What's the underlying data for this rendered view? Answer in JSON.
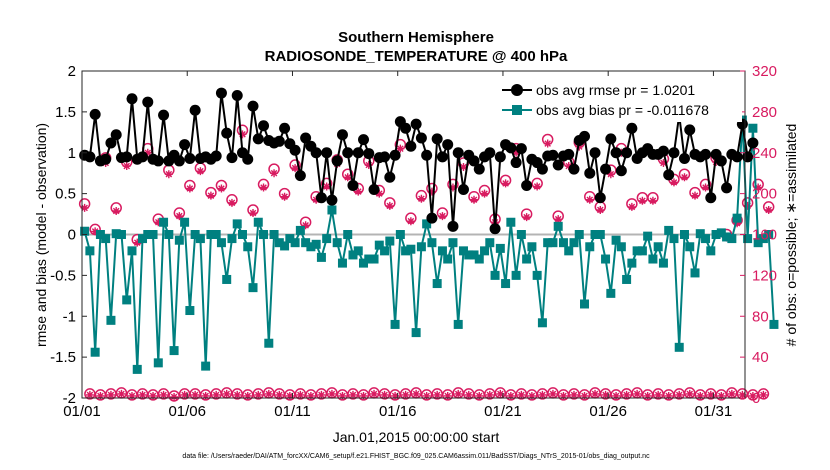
{
  "chart_data": {
    "type": "line",
    "title": "Southern Hemisphere",
    "subtitle": "RADIOSONDE_TEMPERATURE @ 400 hPa",
    "xlabel": "Jan.01,2015 00:00:00 start",
    "ylabel": "rmse and bias (model - observation)",
    "ylabel_right": "# of obs: o=possible; ∗=assimilated",
    "xlim": [
      0,
      31.5
    ],
    "ylim": [
      -2,
      2
    ],
    "ylim_right": [
      0,
      320
    ],
    "x_ticks": [
      0,
      5,
      10,
      15,
      20,
      25,
      30
    ],
    "x_tick_labels": [
      "01/01",
      "01/06",
      "01/11",
      "01/16",
      "01/21",
      "01/26",
      "01/31"
    ],
    "y_ticks": [
      -2,
      -1.5,
      -1,
      -0.5,
      0,
      0.5,
      1,
      1.5,
      2
    ],
    "y_tick_labels": [
      "-2",
      "-1.5",
      "-1",
      "-0.5",
      "0",
      "0.5",
      "1",
      "1.5",
      "2"
    ],
    "y_ticks_right": [
      0,
      40,
      80,
      120,
      160,
      200,
      240,
      280,
      320
    ],
    "y_tick_labels_right": [
      "0",
      "40",
      "80",
      "120",
      "160",
      "200",
      "240",
      "280",
      "320"
    ],
    "footer": "data file: /Users/raeder/DAI/ATM_forcXX/CAM6_setup/f.e21.FHIST_BGC.f09_025.CAM6assim.011/BadSST/Diags_NTrS_2015-01/obs_diag_output.nc",
    "colors": {
      "rmse": "#000000",
      "bias": "#008080",
      "obs": "#d81b60",
      "zero": "#b4b4b4"
    },
    "series": [
      {
        "name": "obs avg rmse pr = 1.0201",
        "values": [
          0.97,
          0.95,
          1.47,
          0.9,
          0.92,
          1.12,
          1.22,
          0.94,
          0.95,
          1.66,
          0.92,
          0.95,
          1.62,
          0.92,
          0.9,
          1.46,
          0.9,
          0.97,
          0.9,
          1.1,
          0.93,
          1.52,
          0.93,
          0.95,
          0.92,
          0.96,
          1.73,
          1.24,
          0.94,
          1.7,
          1.0,
          0.92,
          1.57,
          1.17,
          1.33,
          1.15,
          1.12,
          1.14,
          1.3,
          1.11,
          1.03,
          0.72,
          1.18,
          1.08,
          1.0,
          0.45,
          1.0,
          0.42,
          0.9,
          1.22,
          1.0,
          0.6,
          1.0,
          1.16,
          0.99,
          0.55,
          0.94,
          0.95,
          0.7,
          0.97,
          1.38,
          1.3,
          1.08,
          1.35,
          1.18,
          0.97,
          0.2,
          1.17,
          0.95,
          1.1,
          0.1,
          1.0,
          0.55,
          0.97,
          0.9,
          0.8,
          0.95,
          1.0,
          0.07,
          0.95,
          1.1,
          1.06,
          0.88,
          1.05,
          0.6,
          0.92,
          0.88,
          0.8,
          0.96,
          0.97,
          0.85,
          0.96,
          0.98,
          0.8,
          1.15,
          1.2,
          0.75,
          1.0,
          0.45,
          0.8,
          1.17,
          1.0,
          0.78,
          1.0,
          1.3,
          0.93,
          1.0,
          1.05,
          0.98,
          0.98,
          1.02,
          0.73,
          1.0,
          1.46,
          0.93,
          1.28,
          0.98,
          0.95,
          0.98,
          0.45,
          0.98,
          0.9,
          0.57,
          0.98,
          0.95,
          1.35,
          0.95,
          1.12
        ]
      },
      {
        "name": "obs avg bias pr = -0.011678",
        "values": [
          0.04,
          -0.2,
          -1.44,
          0.0,
          -0.05,
          -1.05,
          0.01,
          0.0,
          -0.8,
          -0.2,
          -1.65,
          -0.05,
          0.0,
          0.0,
          -1.57,
          0.15,
          0.0,
          -1.42,
          -0.07,
          0.15,
          -0.93,
          0.0,
          -0.05,
          -1.61,
          0.0,
          0.0,
          -0.1,
          -0.55,
          -0.05,
          0.13,
          0.0,
          -0.15,
          -0.65,
          0.15,
          0.0,
          -1.33,
          0.0,
          -0.1,
          -0.14,
          -0.05,
          -0.1,
          0.05,
          -0.1,
          -0.15,
          -0.12,
          -0.28,
          -0.05,
          0.3,
          -0.1,
          -0.35,
          0.0,
          -0.25,
          -0.2,
          -0.35,
          -0.3,
          -0.3,
          -0.13,
          -0.2,
          -0.08,
          -1.1,
          0.0,
          -0.2,
          -0.18,
          -1.2,
          -0.15,
          0.13,
          -0.1,
          -0.6,
          -0.2,
          -0.3,
          -0.1,
          -1.1,
          -0.2,
          -0.25,
          -0.25,
          -0.3,
          -0.2,
          -0.1,
          -0.5,
          -0.17,
          -0.6,
          0.15,
          -0.5,
          0.0,
          -0.3,
          -0.15,
          -0.5,
          -1.08,
          -0.1,
          -0.1,
          0.1,
          -0.1,
          -0.2,
          -0.1,
          0.0,
          -0.85,
          -0.15,
          0.0,
          0.0,
          -0.3,
          -0.72,
          -0.07,
          -0.15,
          -0.55,
          -0.35,
          -0.2,
          -0.2,
          -0.02,
          -0.3,
          -0.15,
          -0.35,
          0.05,
          -0.05,
          -1.38,
          0.0,
          -0.15,
          -0.47,
          0.01,
          -0.05,
          -0.2,
          0.0,
          0.02,
          -0.03,
          -0.05,
          0.2,
          1.4,
          -0.05,
          1.3,
          -0.1,
          -0.05,
          0.0,
          -1.1
        ]
      },
      {
        "name": "possible",
        "axis": "right",
        "marker": "o",
        "values": [
          190,
          4,
          165,
          3,
          235,
          4,
          186,
          5,
          231,
          3,
          155,
          4,
          244,
          3,
          175,
          4,
          223,
          2,
          181,
          4,
          208,
          4,
          225,
          3,
          201,
          4,
          208,
          5,
          194,
          4,
          262,
          3,
          184,
          4,
          209,
          5,
          224,
          4,
          200,
          3,
          228,
          4,
          172,
          3,
          197,
          4,
          210,
          5,
          233,
          3,
          219,
          4,
          205,
          3,
          232,
          5,
          203,
          4,
          191,
          3,
          248,
          4,
          176,
          5,
          198,
          3,
          205,
          4,
          181,
          3,
          209,
          5,
          230,
          4,
          197,
          3,
          203,
          4,
          175,
          5,
          213,
          3,
          244,
          4,
          180,
          3,
          210,
          4,
          253,
          5,
          178,
          3,
          231,
          4,
          250,
          3,
          197,
          5,
          187,
          4,
          223,
          3,
          244,
          4,
          190,
          5,
          196,
          3,
          196,
          4,
          234,
          3,
          214,
          4,
          219,
          5,
          201,
          3,
          209,
          4,
          235,
          3,
          160,
          5,
          174,
          4,
          191,
          3,
          209,
          4,
          187
        ]
      },
      {
        "name": "assimilated",
        "axis": "right",
        "marker": "*",
        "values": [
          186,
          3,
          163,
          2,
          230,
          3,
          183,
          4,
          227,
          2,
          152,
          3,
          240,
          2,
          172,
          3,
          219,
          1,
          178,
          3,
          205,
          3,
          222,
          2,
          198,
          3,
          205,
          4,
          191,
          3,
          258,
          2,
          181,
          3,
          206,
          4,
          220,
          3,
          197,
          2,
          225,
          3,
          169,
          2,
          194,
          3,
          207,
          4,
          229,
          2,
          216,
          3,
          202,
          2,
          228,
          4,
          200,
          3,
          188,
          2,
          244,
          3,
          173,
          4,
          195,
          2,
          202,
          3,
          178,
          2,
          206,
          4,
          226,
          3,
          194,
          2,
          200,
          3,
          172,
          4,
          210,
          2,
          240,
          3,
          177,
          2,
          207,
          3,
          249,
          4,
          175,
          2,
          227,
          3,
          246,
          2,
          194,
          4,
          184,
          3,
          219,
          2,
          240,
          3,
          187,
          4,
          193,
          2,
          193,
          3,
          230,
          2,
          211,
          3,
          216,
          4,
          198,
          2,
          206,
          3,
          231,
          2,
          157,
          4,
          171,
          3,
          188,
          2,
          206,
          3,
          184
        ]
      }
    ]
  }
}
